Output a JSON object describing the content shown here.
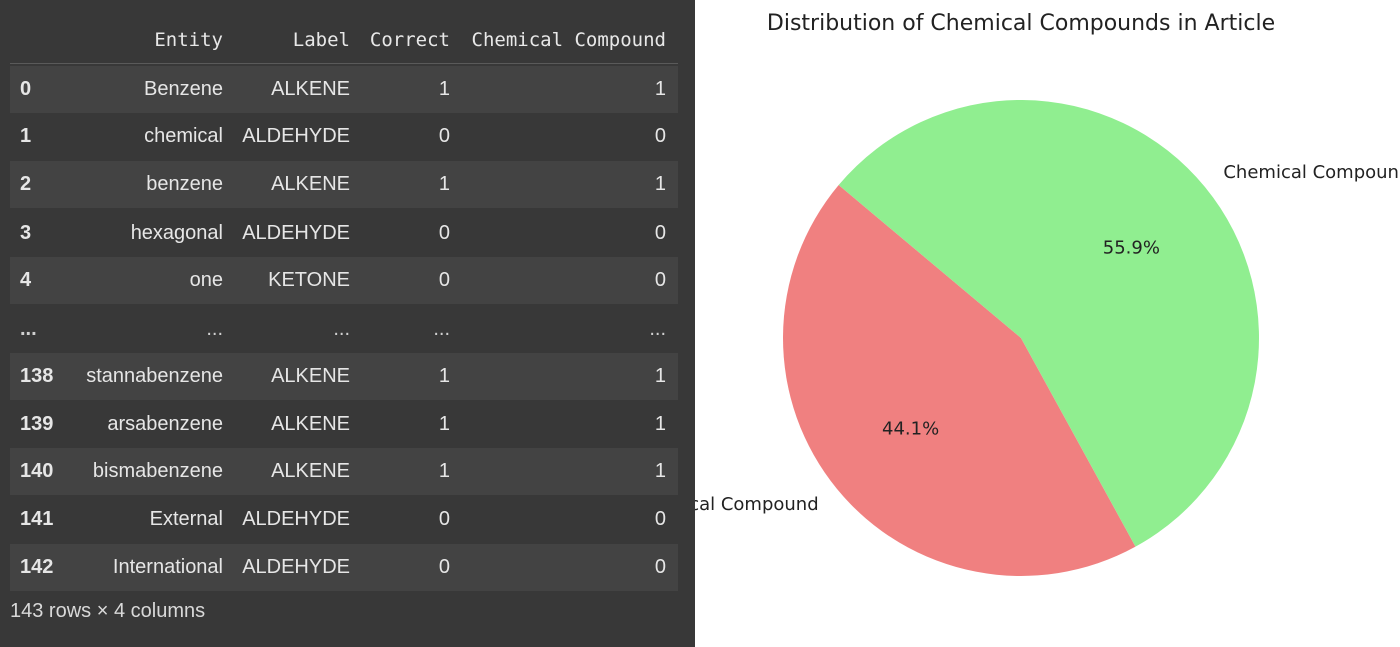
{
  "dataframe": {
    "columns": [
      "Entity",
      "Label",
      "Correct",
      "Chemical Compound"
    ],
    "rows": [
      {
        "index": "0",
        "entity": "Benzene",
        "label": "ALKENE",
        "correct": "1",
        "chemical": "1"
      },
      {
        "index": "1",
        "entity": "chemical",
        "label": "ALDEHYDE",
        "correct": "0",
        "chemical": "0"
      },
      {
        "index": "2",
        "entity": "benzene",
        "label": "ALKENE",
        "correct": "1",
        "chemical": "1"
      },
      {
        "index": "3",
        "entity": "hexagonal",
        "label": "ALDEHYDE",
        "correct": "0",
        "chemical": "0"
      },
      {
        "index": "4",
        "entity": "one",
        "label": "KETONE",
        "correct": "0",
        "chemical": "0"
      },
      {
        "index": "...",
        "entity": "...",
        "label": "...",
        "correct": "...",
        "chemical": "..."
      },
      {
        "index": "138",
        "entity": "stannabenzene",
        "label": "ALKENE",
        "correct": "1",
        "chemical": "1"
      },
      {
        "index": "139",
        "entity": "arsabenzene",
        "label": "ALKENE",
        "correct": "1",
        "chemical": "1"
      },
      {
        "index": "140",
        "entity": "bismabenzene",
        "label": "ALKENE",
        "correct": "1",
        "chemical": "1"
      },
      {
        "index": "141",
        "entity": "External",
        "label": "ALDEHYDE",
        "correct": "0",
        "chemical": "0"
      },
      {
        "index": "142",
        "entity": "International",
        "label": "ALDEHYDE",
        "correct": "0",
        "chemical": "0"
      }
    ],
    "footer": "143 rows × 4 columns"
  },
  "chart_data": {
    "type": "pie",
    "title": "Distribution of Chemical Compounds in Article",
    "slices": [
      {
        "label": "Not a Chemical Compound",
        "value": 44.1,
        "pct_text": "44.1%",
        "color": "#f08080"
      },
      {
        "label": "Chemical Compound",
        "value": 55.9,
        "pct_text": "55.9%",
        "color": "#90ee90"
      }
    ],
    "start_angle_deg": 140,
    "legend": "none"
  }
}
